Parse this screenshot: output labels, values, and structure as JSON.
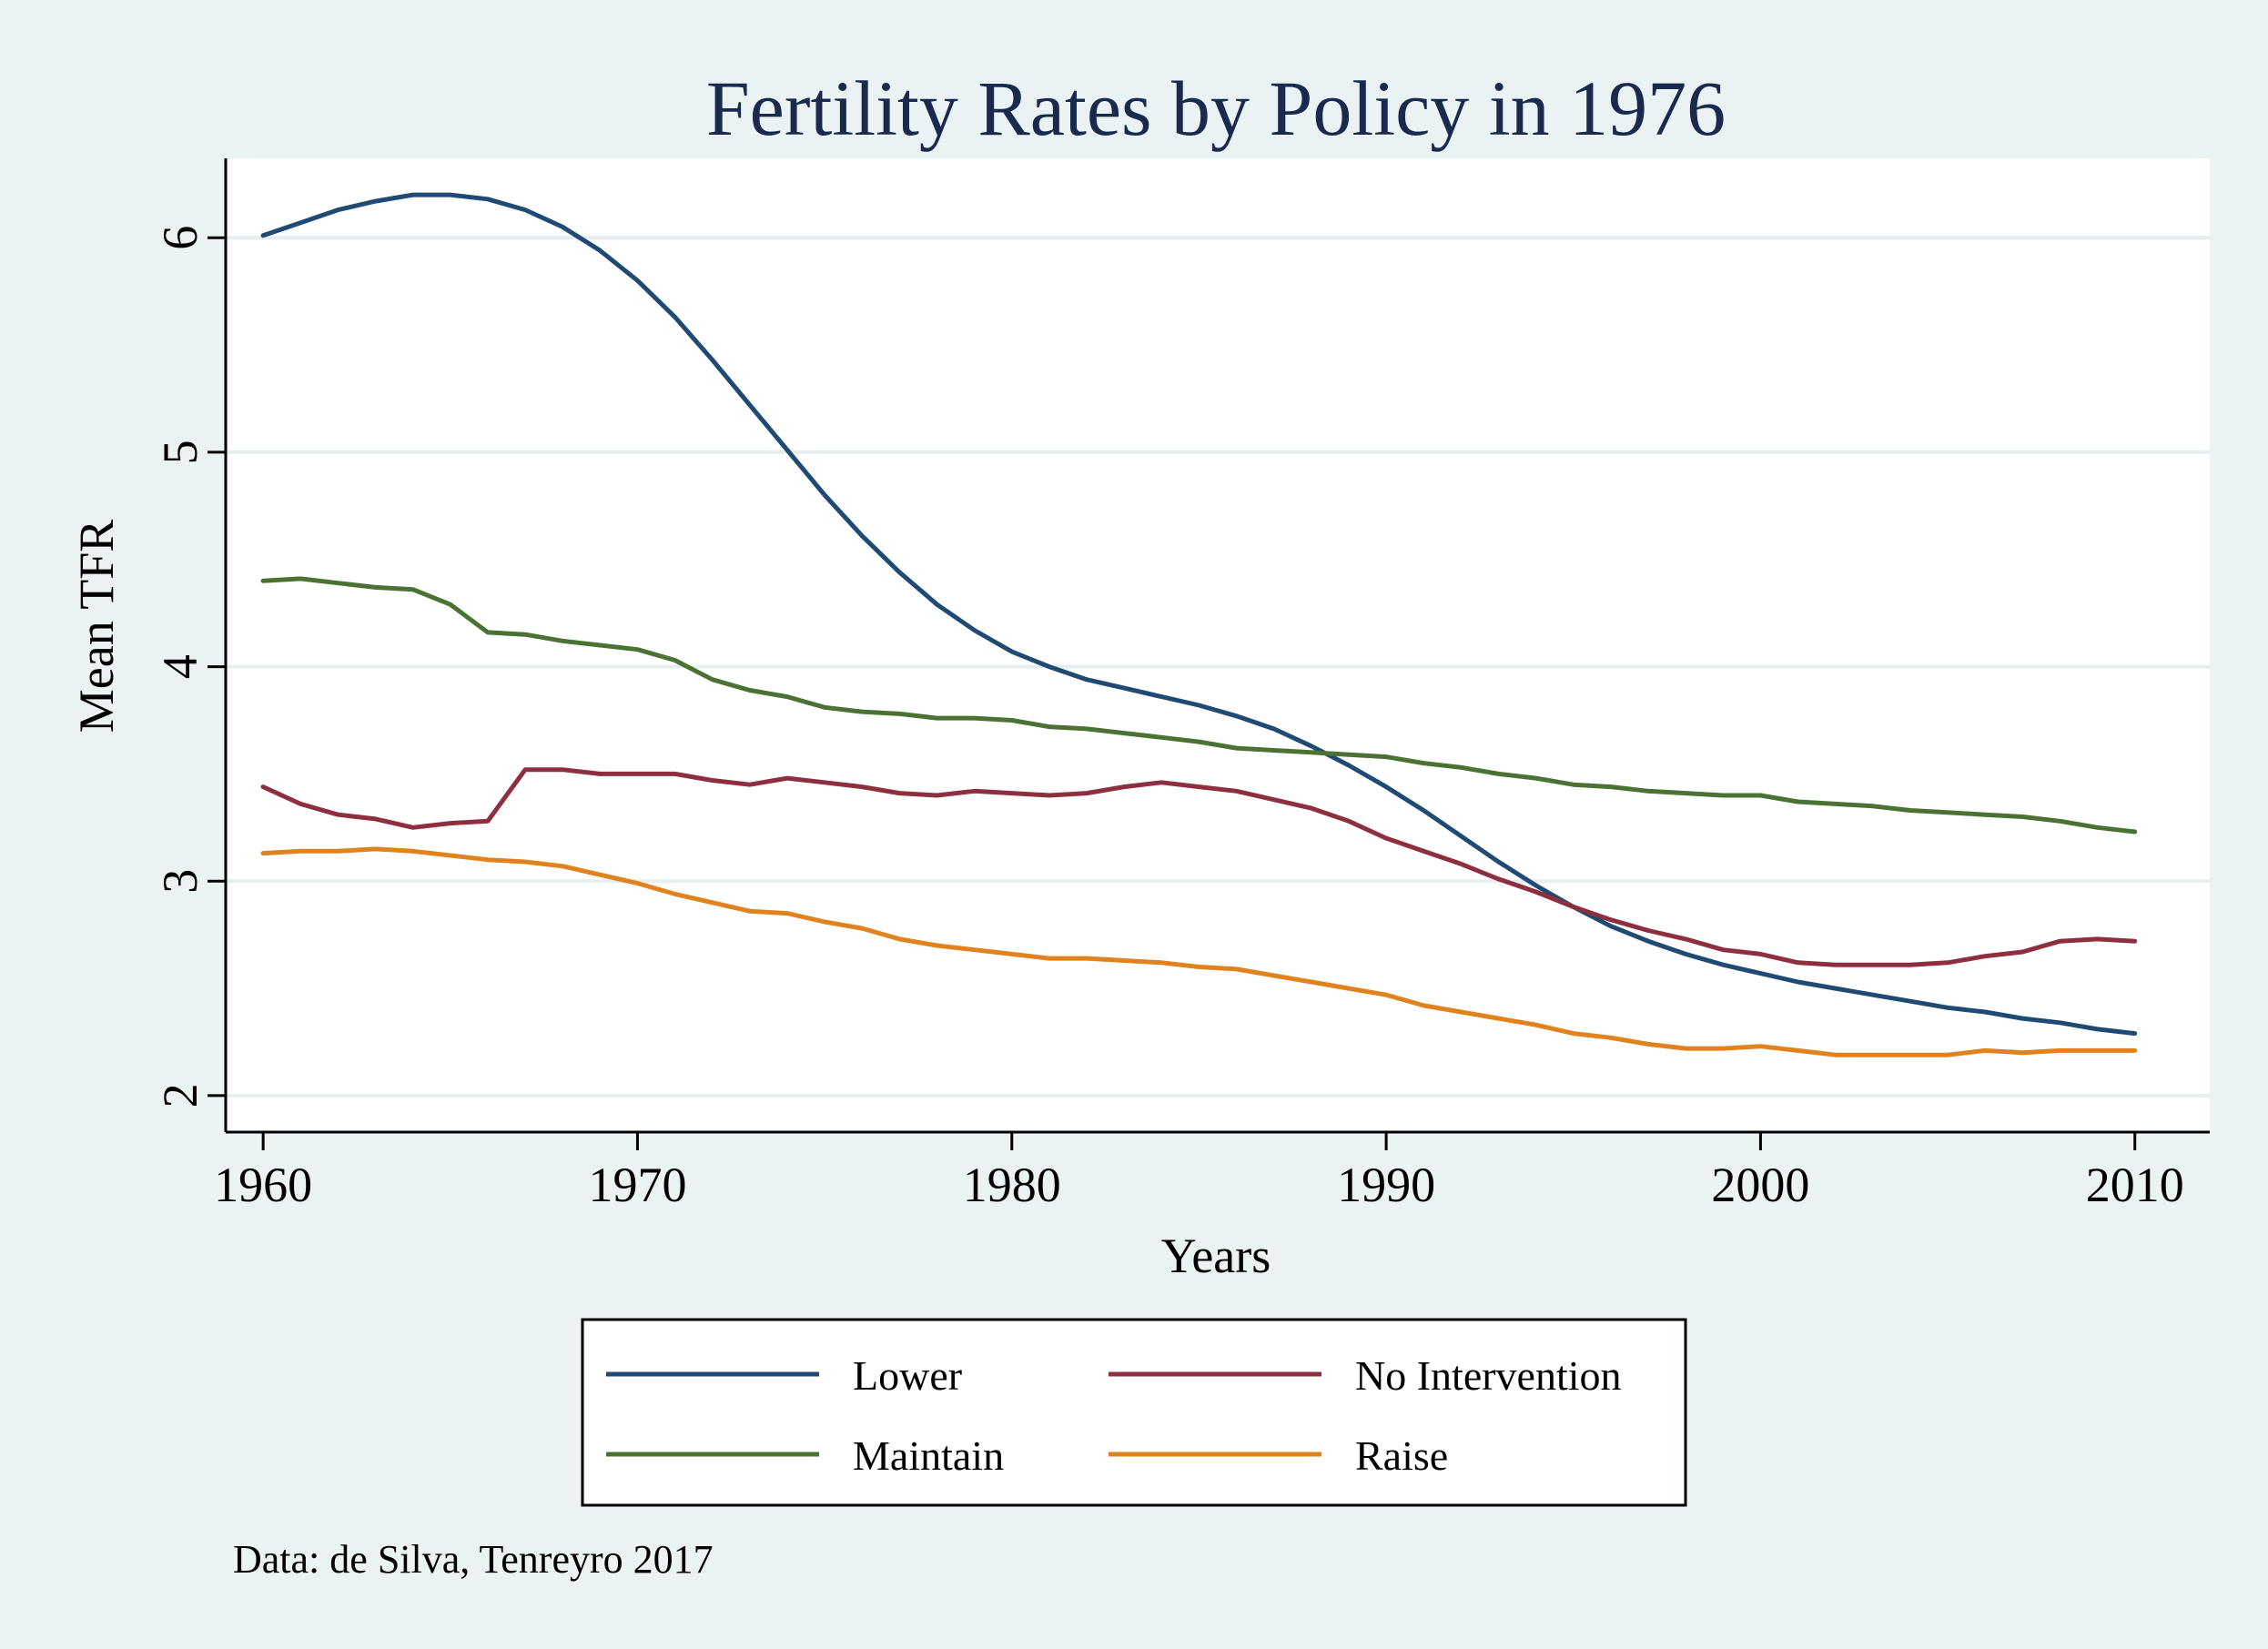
{
  "chart_data": {
    "type": "line",
    "title": "Fertility Rates by Policy in 1976",
    "xlabel": "Years",
    "ylabel": "Mean TFR",
    "xlim": [
      1959,
      2012
    ],
    "ylim": [
      1.83,
      6.37
    ],
    "xticks": [
      1960,
      1970,
      1980,
      1990,
      2000,
      2010
    ],
    "yticks": [
      2,
      3,
      4,
      5,
      6
    ],
    "grid": "horizontal",
    "legend_placement": "bottom",
    "note": "Data: de Silva, Tenreyro 2017",
    "x": [
      1960,
      1961,
      1962,
      1963,
      1964,
      1965,
      1966,
      1967,
      1968,
      1969,
      1970,
      1971,
      1972,
      1973,
      1974,
      1975,
      1976,
      1977,
      1978,
      1979,
      1980,
      1981,
      1982,
      1983,
      1984,
      1985,
      1986,
      1987,
      1988,
      1989,
      1990,
      1991,
      1992,
      1993,
      1994,
      1995,
      1996,
      1997,
      1998,
      1999,
      2000,
      2001,
      2002,
      2003,
      2004,
      2005,
      2006,
      2007,
      2008,
      2009,
      2010
    ],
    "series": [
      {
        "name": "Lower",
        "color": "#1f4a73",
        "values": [
          6.01,
          6.07,
          6.13,
          6.17,
          6.2,
          6.2,
          6.18,
          6.13,
          6.05,
          5.94,
          5.8,
          5.63,
          5.43,
          5.22,
          5.01,
          4.8,
          4.61,
          4.44,
          4.29,
          4.17,
          4.07,
          4.0,
          3.94,
          3.9,
          3.86,
          3.82,
          3.77,
          3.71,
          3.63,
          3.54,
          3.44,
          3.33,
          3.21,
          3.09,
          2.98,
          2.88,
          2.79,
          2.72,
          2.66,
          2.61,
          2.57,
          2.53,
          2.5,
          2.47,
          2.44,
          2.41,
          2.39,
          2.36,
          2.34,
          2.31,
          2.29
        ]
      },
      {
        "name": "No Intervention",
        "color": "#8e2f3f",
        "values": [
          3.44,
          3.36,
          3.31,
          3.29,
          3.25,
          3.27,
          3.28,
          3.52,
          3.52,
          3.5,
          3.5,
          3.5,
          3.47,
          3.45,
          3.48,
          3.46,
          3.44,
          3.41,
          3.4,
          3.42,
          3.41,
          3.4,
          3.41,
          3.44,
          3.46,
          3.44,
          3.42,
          3.38,
          3.34,
          3.28,
          3.2,
          3.14,
          3.08,
          3.01,
          2.95,
          2.88,
          2.82,
          2.77,
          2.73,
          2.68,
          2.66,
          2.62,
          2.61,
          2.61,
          2.61,
          2.62,
          2.65,
          2.67,
          2.72,
          2.73,
          2.72
        ]
      },
      {
        "name": "Maintain",
        "color": "#4a7232",
        "values": [
          4.4,
          4.41,
          4.39,
          4.37,
          4.36,
          4.29,
          4.16,
          4.15,
          4.12,
          4.1,
          4.08,
          4.03,
          3.94,
          3.89,
          3.86,
          3.81,
          3.79,
          3.78,
          3.76,
          3.76,
          3.75,
          3.72,
          3.71,
          3.69,
          3.67,
          3.65,
          3.62,
          3.61,
          3.6,
          3.59,
          3.58,
          3.55,
          3.53,
          3.5,
          3.48,
          3.45,
          3.44,
          3.42,
          3.41,
          3.4,
          3.4,
          3.37,
          3.36,
          3.35,
          3.33,
          3.32,
          3.31,
          3.3,
          3.28,
          3.25,
          3.23
        ]
      },
      {
        "name": "Raise",
        "color": "#e0821e",
        "values": [
          3.13,
          3.14,
          3.14,
          3.15,
          3.14,
          3.12,
          3.1,
          3.09,
          3.07,
          3.03,
          2.99,
          2.94,
          2.9,
          2.86,
          2.85,
          2.81,
          2.78,
          2.73,
          2.7,
          2.68,
          2.66,
          2.64,
          2.64,
          2.63,
          2.62,
          2.6,
          2.59,
          2.56,
          2.53,
          2.5,
          2.47,
          2.42,
          2.39,
          2.36,
          2.33,
          2.29,
          2.27,
          2.24,
          2.22,
          2.22,
          2.23,
          2.21,
          2.19,
          2.19,
          2.19,
          2.19,
          2.21,
          2.2,
          2.21,
          2.21,
          2.21
        ]
      }
    ]
  },
  "legend": {
    "items": [
      "Lower",
      "No Intervention",
      "Maintain",
      "Raise"
    ]
  }
}
